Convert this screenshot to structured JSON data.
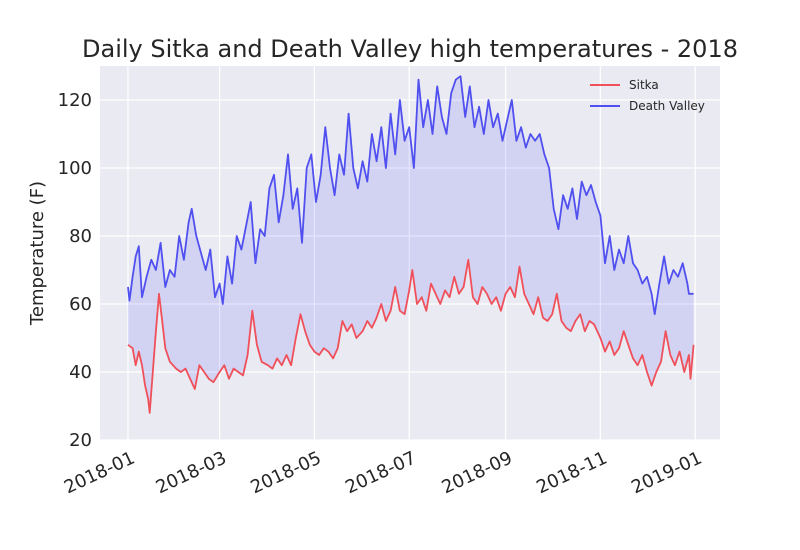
{
  "chart_data": {
    "type": "line",
    "title": "Daily Sitka and Death Valley high temperatures - 2018",
    "xlabel": "",
    "ylabel": "Temperature (F)",
    "xlim": [
      "2017-12-14",
      "2019-01-17"
    ],
    "ylim": [
      20,
      130
    ],
    "x_ticks": [
      "2018-01",
      "2018-03",
      "2018-05",
      "2018-07",
      "2018-09",
      "2018-11",
      "2019-01"
    ],
    "y_ticks": [
      20,
      40,
      60,
      80,
      100,
      120
    ],
    "grid": true,
    "legend": "top-right",
    "fill_between": true,
    "fill_color": "#0000ff",
    "series": [
      {
        "name": "Sitka",
        "color": "#f0505a",
        "points": [
          [
            "2018-01-01",
            48
          ],
          [
            "2018-01-04",
            47
          ],
          [
            "2018-01-06",
            42
          ],
          [
            "2018-01-08",
            46
          ],
          [
            "2018-01-10",
            42
          ],
          [
            "2018-01-12",
            36
          ],
          [
            "2018-01-14",
            32
          ],
          [
            "2018-01-15",
            28
          ],
          [
            "2018-01-17",
            40
          ],
          [
            "2018-01-19",
            52
          ],
          [
            "2018-01-21",
            63
          ],
          [
            "2018-01-23",
            55
          ],
          [
            "2018-01-25",
            47
          ],
          [
            "2018-01-28",
            43
          ],
          [
            "2018-02-01",
            41
          ],
          [
            "2018-02-04",
            40
          ],
          [
            "2018-02-07",
            41
          ],
          [
            "2018-02-10",
            38
          ],
          [
            "2018-02-13",
            35
          ],
          [
            "2018-02-16",
            42
          ],
          [
            "2018-02-19",
            40
          ],
          [
            "2018-02-22",
            38
          ],
          [
            "2018-02-25",
            37
          ],
          [
            "2018-03-01",
            40
          ],
          [
            "2018-03-04",
            42
          ],
          [
            "2018-03-07",
            38
          ],
          [
            "2018-03-10",
            41
          ],
          [
            "2018-03-13",
            40
          ],
          [
            "2018-03-16",
            39
          ],
          [
            "2018-03-19",
            45
          ],
          [
            "2018-03-22",
            58
          ],
          [
            "2018-03-25",
            48
          ],
          [
            "2018-03-28",
            43
          ],
          [
            "2018-04-01",
            42
          ],
          [
            "2018-04-04",
            41
          ],
          [
            "2018-04-07",
            44
          ],
          [
            "2018-04-10",
            42
          ],
          [
            "2018-04-13",
            45
          ],
          [
            "2018-04-16",
            42
          ],
          [
            "2018-04-19",
            50
          ],
          [
            "2018-04-22",
            57
          ],
          [
            "2018-04-25",
            52
          ],
          [
            "2018-04-28",
            48
          ],
          [
            "2018-05-01",
            46
          ],
          [
            "2018-05-04",
            45
          ],
          [
            "2018-05-07",
            47
          ],
          [
            "2018-05-10",
            46
          ],
          [
            "2018-05-13",
            44
          ],
          [
            "2018-05-16",
            47
          ],
          [
            "2018-05-19",
            55
          ],
          [
            "2018-05-22",
            52
          ],
          [
            "2018-05-25",
            54
          ],
          [
            "2018-05-28",
            50
          ],
          [
            "2018-06-01",
            52
          ],
          [
            "2018-06-04",
            55
          ],
          [
            "2018-06-07",
            53
          ],
          [
            "2018-06-10",
            56
          ],
          [
            "2018-06-13",
            60
          ],
          [
            "2018-06-16",
            55
          ],
          [
            "2018-06-19",
            58
          ],
          [
            "2018-06-22",
            65
          ],
          [
            "2018-06-25",
            58
          ],
          [
            "2018-06-28",
            57
          ],
          [
            "2018-07-01",
            64
          ],
          [
            "2018-07-03",
            70
          ],
          [
            "2018-07-06",
            60
          ],
          [
            "2018-07-09",
            62
          ],
          [
            "2018-07-12",
            58
          ],
          [
            "2018-07-15",
            66
          ],
          [
            "2018-07-18",
            63
          ],
          [
            "2018-07-21",
            60
          ],
          [
            "2018-07-24",
            64
          ],
          [
            "2018-07-27",
            62
          ],
          [
            "2018-07-30",
            68
          ],
          [
            "2018-08-02",
            63
          ],
          [
            "2018-08-05",
            65
          ],
          [
            "2018-08-08",
            73
          ],
          [
            "2018-08-11",
            62
          ],
          [
            "2018-08-14",
            60
          ],
          [
            "2018-08-17",
            65
          ],
          [
            "2018-08-20",
            63
          ],
          [
            "2018-08-23",
            60
          ],
          [
            "2018-08-26",
            62
          ],
          [
            "2018-08-29",
            58
          ],
          [
            "2018-09-01",
            63
          ],
          [
            "2018-09-04",
            65
          ],
          [
            "2018-09-07",
            62
          ],
          [
            "2018-09-10",
            71
          ],
          [
            "2018-09-13",
            63
          ],
          [
            "2018-09-16",
            60
          ],
          [
            "2018-09-19",
            57
          ],
          [
            "2018-09-22",
            62
          ],
          [
            "2018-09-25",
            56
          ],
          [
            "2018-09-28",
            55
          ],
          [
            "2018-10-01",
            57
          ],
          [
            "2018-10-04",
            63
          ],
          [
            "2018-10-07",
            55
          ],
          [
            "2018-10-10",
            53
          ],
          [
            "2018-10-13",
            52
          ],
          [
            "2018-10-16",
            55
          ],
          [
            "2018-10-19",
            57
          ],
          [
            "2018-10-22",
            52
          ],
          [
            "2018-10-25",
            55
          ],
          [
            "2018-10-28",
            54
          ],
          [
            "2018-11-01",
            50
          ],
          [
            "2018-11-04",
            46
          ],
          [
            "2018-11-07",
            49
          ],
          [
            "2018-11-10",
            45
          ],
          [
            "2018-11-13",
            47
          ],
          [
            "2018-11-16",
            52
          ],
          [
            "2018-11-19",
            48
          ],
          [
            "2018-11-22",
            44
          ],
          [
            "2018-11-25",
            42
          ],
          [
            "2018-11-28",
            45
          ],
          [
            "2018-12-01",
            40
          ],
          [
            "2018-12-04",
            36
          ],
          [
            "2018-12-07",
            40
          ],
          [
            "2018-12-10",
            43
          ],
          [
            "2018-12-13",
            52
          ],
          [
            "2018-12-16",
            45
          ],
          [
            "2018-12-19",
            42
          ],
          [
            "2018-12-22",
            46
          ],
          [
            "2018-12-25",
            40
          ],
          [
            "2018-12-28",
            45
          ],
          [
            "2018-12-29",
            38
          ],
          [
            "2018-12-31",
            48
          ]
        ]
      },
      {
        "name": "Death Valley",
        "color": "#5050f0",
        "points": [
          [
            "2018-01-01",
            65
          ],
          [
            "2018-01-02",
            61
          ],
          [
            "2018-01-04",
            68
          ],
          [
            "2018-01-06",
            74
          ],
          [
            "2018-01-08",
            77
          ],
          [
            "2018-01-10",
            62
          ],
          [
            "2018-01-13",
            68
          ],
          [
            "2018-01-16",
            73
          ],
          [
            "2018-01-19",
            70
          ],
          [
            "2018-01-22",
            78
          ],
          [
            "2018-01-25",
            65
          ],
          [
            "2018-01-28",
            70
          ],
          [
            "2018-01-31",
            68
          ],
          [
            "2018-02-03",
            80
          ],
          [
            "2018-02-06",
            73
          ],
          [
            "2018-02-09",
            84
          ],
          [
            "2018-02-11",
            88
          ],
          [
            "2018-02-14",
            80
          ],
          [
            "2018-02-17",
            75
          ],
          [
            "2018-02-20",
            70
          ],
          [
            "2018-02-23",
            76
          ],
          [
            "2018-02-26",
            62
          ],
          [
            "2018-03-01",
            66
          ],
          [
            "2018-03-03",
            60
          ],
          [
            "2018-03-06",
            74
          ],
          [
            "2018-03-09",
            66
          ],
          [
            "2018-03-12",
            80
          ],
          [
            "2018-03-15",
            76
          ],
          [
            "2018-03-18",
            83
          ],
          [
            "2018-03-21",
            90
          ],
          [
            "2018-03-24",
            72
          ],
          [
            "2018-03-27",
            82
          ],
          [
            "2018-03-30",
            80
          ],
          [
            "2018-04-02",
            94
          ],
          [
            "2018-04-05",
            98
          ],
          [
            "2018-04-08",
            84
          ],
          [
            "2018-04-11",
            92
          ],
          [
            "2018-04-14",
            104
          ],
          [
            "2018-04-17",
            88
          ],
          [
            "2018-04-20",
            94
          ],
          [
            "2018-04-23",
            78
          ],
          [
            "2018-04-26",
            100
          ],
          [
            "2018-04-29",
            104
          ],
          [
            "2018-05-02",
            90
          ],
          [
            "2018-05-05",
            98
          ],
          [
            "2018-05-08",
            112
          ],
          [
            "2018-05-11",
            100
          ],
          [
            "2018-05-14",
            92
          ],
          [
            "2018-05-17",
            104
          ],
          [
            "2018-05-20",
            98
          ],
          [
            "2018-05-23",
            116
          ],
          [
            "2018-05-26",
            100
          ],
          [
            "2018-05-29",
            94
          ],
          [
            "2018-06-01",
            102
          ],
          [
            "2018-06-04",
            96
          ],
          [
            "2018-06-07",
            110
          ],
          [
            "2018-06-10",
            102
          ],
          [
            "2018-06-13",
            112
          ],
          [
            "2018-06-16",
            100
          ],
          [
            "2018-06-19",
            116
          ],
          [
            "2018-06-22",
            104
          ],
          [
            "2018-06-25",
            120
          ],
          [
            "2018-06-28",
            108
          ],
          [
            "2018-07-01",
            112
          ],
          [
            "2018-07-04",
            100
          ],
          [
            "2018-07-07",
            126
          ],
          [
            "2018-07-10",
            112
          ],
          [
            "2018-07-13",
            120
          ],
          [
            "2018-07-16",
            110
          ],
          [
            "2018-07-19",
            124
          ],
          [
            "2018-07-22",
            115
          ],
          [
            "2018-07-25",
            110
          ],
          [
            "2018-07-28",
            122
          ],
          [
            "2018-07-31",
            126
          ],
          [
            "2018-08-03",
            127
          ],
          [
            "2018-08-06",
            115
          ],
          [
            "2018-08-09",
            124
          ],
          [
            "2018-08-12",
            112
          ],
          [
            "2018-08-15",
            118
          ],
          [
            "2018-08-18",
            110
          ],
          [
            "2018-08-21",
            120
          ],
          [
            "2018-08-24",
            112
          ],
          [
            "2018-08-27",
            116
          ],
          [
            "2018-08-30",
            108
          ],
          [
            "2018-09-02",
            114
          ],
          [
            "2018-09-05",
            120
          ],
          [
            "2018-09-08",
            108
          ],
          [
            "2018-09-11",
            112
          ],
          [
            "2018-09-14",
            106
          ],
          [
            "2018-09-17",
            110
          ],
          [
            "2018-09-20",
            108
          ],
          [
            "2018-09-23",
            110
          ],
          [
            "2018-09-26",
            104
          ],
          [
            "2018-09-29",
            100
          ],
          [
            "2018-10-02",
            88
          ],
          [
            "2018-10-05",
            82
          ],
          [
            "2018-10-08",
            92
          ],
          [
            "2018-10-11",
            88
          ],
          [
            "2018-10-14",
            94
          ],
          [
            "2018-10-17",
            85
          ],
          [
            "2018-10-20",
            96
          ],
          [
            "2018-10-23",
            92
          ],
          [
            "2018-10-26",
            95
          ],
          [
            "2018-10-29",
            90
          ],
          [
            "2018-11-01",
            86
          ],
          [
            "2018-11-04",
            72
          ],
          [
            "2018-11-07",
            80
          ],
          [
            "2018-11-10",
            70
          ],
          [
            "2018-11-13",
            76
          ],
          [
            "2018-11-16",
            72
          ],
          [
            "2018-11-19",
            80
          ],
          [
            "2018-11-22",
            72
          ],
          [
            "2018-11-25",
            70
          ],
          [
            "2018-11-28",
            66
          ],
          [
            "2018-12-01",
            68
          ],
          [
            "2018-12-04",
            63
          ],
          [
            "2018-12-06",
            57
          ],
          [
            "2018-12-09",
            66
          ],
          [
            "2018-12-12",
            74
          ],
          [
            "2018-12-15",
            66
          ],
          [
            "2018-12-18",
            70
          ],
          [
            "2018-12-21",
            68
          ],
          [
            "2018-12-24",
            72
          ],
          [
            "2018-12-27",
            66
          ],
          [
            "2018-12-28",
            63
          ],
          [
            "2018-12-31",
            63
          ]
        ]
      }
    ]
  }
}
